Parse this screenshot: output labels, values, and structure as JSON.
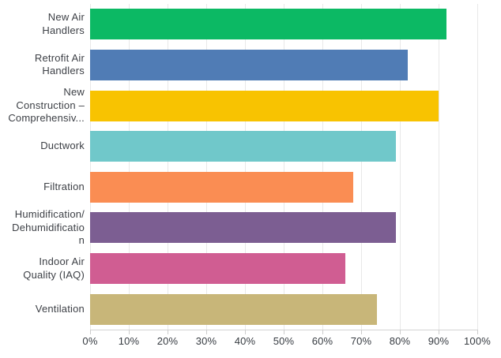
{
  "chart_data": {
    "type": "bar",
    "orientation": "horizontal",
    "title": "",
    "xlabel": "",
    "ylabel": "",
    "xlim": [
      0,
      100
    ],
    "value_unit": "%",
    "grid": true,
    "legend": false,
    "categories": [
      "New Air Handlers",
      "Retrofit Air Handlers",
      "New Construction – Comprehensiv...",
      "Ductwork",
      "Filtration",
      "Humidification/Dehumidification",
      "Indoor Air Quality (IAQ)",
      "Ventilation"
    ],
    "display_labels": [
      "New Air\nHandlers",
      "Retrofit Air\nHandlers",
      "New\nConstruction –\nComprehensiv...",
      "Ductwork",
      "Filtration",
      "Humidification/\nDehumidificatio\nn",
      "Indoor Air\nQuality (IAQ)",
      "Ventilation"
    ],
    "values": [
      92,
      82,
      90,
      79,
      68,
      79,
      66,
      74
    ],
    "bar_colors": [
      "#0cb964",
      "#507cb5",
      "#f8c301",
      "#70c8ca",
      "#fa8d53",
      "#7c5e92",
      "#d05d92",
      "#c8b679"
    ],
    "x_ticks": [
      "0%",
      "10%",
      "20%",
      "30%",
      "40%",
      "50%",
      "60%",
      "70%",
      "80%",
      "90%",
      "100%"
    ],
    "x_tick_values": [
      0,
      10,
      20,
      30,
      40,
      50,
      60,
      70,
      80,
      90,
      100
    ]
  },
  "colors": {
    "background": "#ffffff",
    "gridline": "#e8e8e8",
    "axis_line": "#d4d4d4",
    "tick_mark": "#cccccc",
    "category_text": "#3d4046",
    "tick_text": "#363b41"
  }
}
